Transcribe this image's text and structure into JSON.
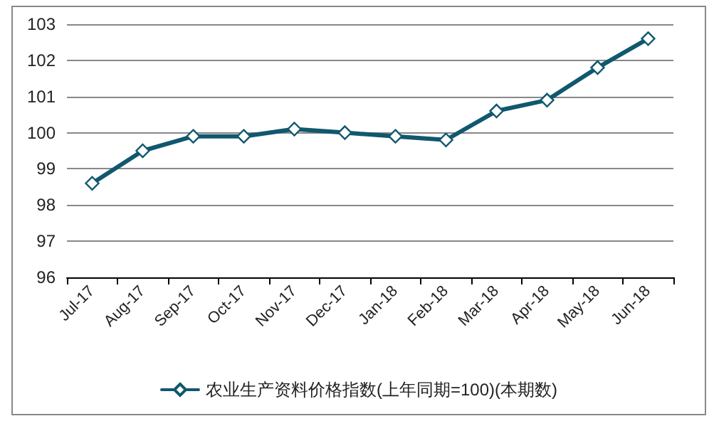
{
  "chart_data": {
    "type": "line",
    "categories": [
      "Jul-17",
      "Aug-17",
      "Sep-17",
      "Oct-17",
      "Nov-17",
      "Dec-17",
      "Jan-18",
      "Feb-18",
      "Mar-18",
      "Apr-18",
      "May-18",
      "Jun-18"
    ],
    "series": [
      {
        "name": "农业生产资料价格指数(上年同期=100)(本期数)",
        "color": "#10586e",
        "values": [
          98.6,
          99.5,
          99.9,
          99.9,
          100.1,
          100.0,
          99.9,
          99.8,
          100.6,
          100.9,
          101.8,
          102.6
        ]
      }
    ],
    "ylim": [
      96,
      103
    ],
    "yticks": [
      96,
      97,
      98,
      99,
      100,
      101,
      102,
      103
    ],
    "grid": "y",
    "legend": "bottom",
    "marker": "diamond",
    "line_style": "solid"
  }
}
